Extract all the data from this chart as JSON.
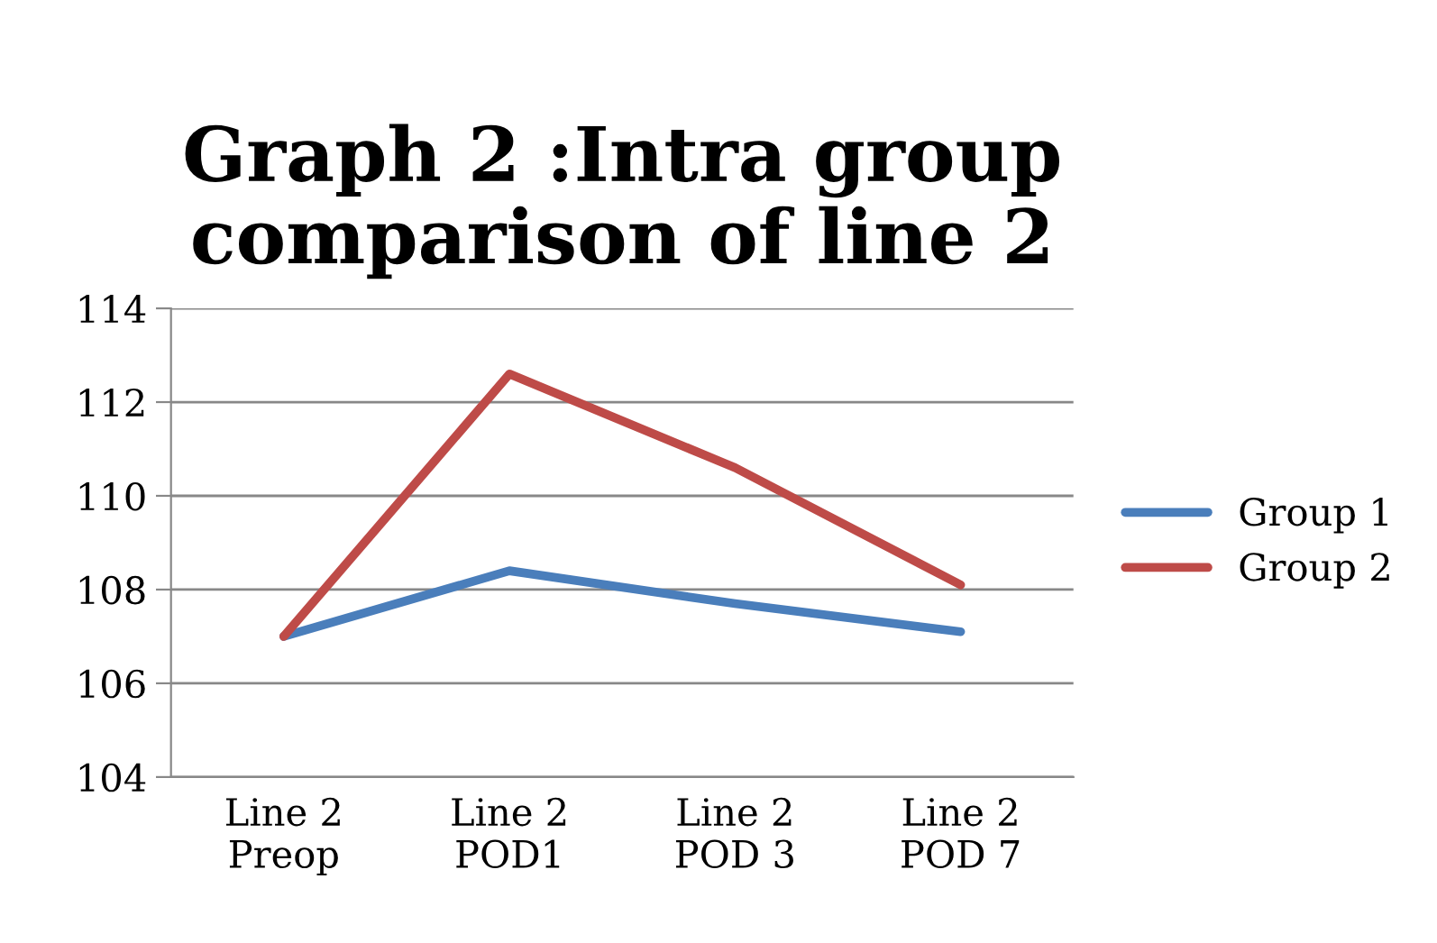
{
  "chart_data": {
    "type": "line",
    "title": "Graph 2 :Intra group\ncomparison of line 2",
    "categories": [
      "Line 2\nPreop",
      "Line 2\nPOD1",
      "Line 2\nPOD 3",
      "Line 2\nPOD 7"
    ],
    "series": [
      {
        "name": "Group 1",
        "color": "#4a7ebb",
        "values": [
          107.0,
          108.4,
          107.7,
          107.1
        ]
      },
      {
        "name": "Group 2",
        "color": "#be4b48",
        "values": [
          107.0,
          112.6,
          110.6,
          108.1
        ]
      }
    ],
    "ylim": [
      104,
      114
    ],
    "yticks": [
      104,
      106,
      108,
      110,
      112,
      114
    ],
    "grid": "y",
    "legend": "right",
    "marker": "none",
    "line_style": "solid"
  }
}
